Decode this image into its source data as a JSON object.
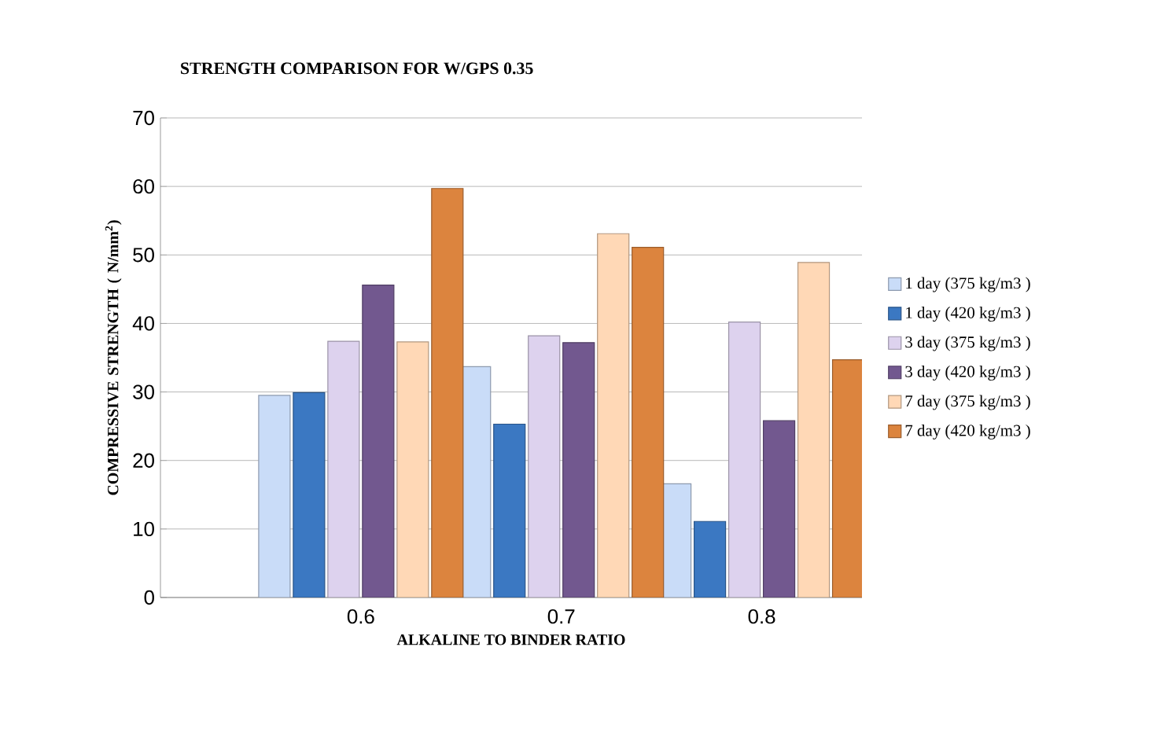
{
  "chart_data": {
    "type": "bar",
    "title": "STRENGTH COMPARISON FOR W/GPS 0.35",
    "xlabel": "ALKALINE  TO BINDER RATIO",
    "ylabel": "COMPRESSIVE STRENGTH ( N/mm$^{2}$)",
    "categories": [
      "0.6",
      "0.7",
      "0.8"
    ],
    "series": [
      {
        "name": "1 day (375 kg/m3 )",
        "color": "#c9dcf8",
        "values": [
          29.5,
          33.7,
          16.6
        ]
      },
      {
        "name": "1 day (420 kg/m3 )",
        "color": "#3b78c2",
        "values": [
          29.9,
          25.3,
          11.1
        ]
      },
      {
        "name": "3 day (375 kg/m3 )",
        "color": "#ddd2ee",
        "values": [
          37.4,
          38.2,
          40.2
        ]
      },
      {
        "name": "3 day (420 kg/m3 )",
        "color": "#72588f",
        "values": [
          45.6,
          37.2,
          25.8
        ]
      },
      {
        "name": "7 day (375 kg/m3 )",
        "color": "#ffd8b6",
        "values": [
          37.3,
          53.1,
          48.9
        ]
      },
      {
        "name": "7 day (420 kg/m3 )",
        "color": "#dc843e",
        "values": [
          59.7,
          51.1,
          34.7
        ]
      }
    ],
    "ylim": [
      0,
      70
    ],
    "yticks": [
      0,
      10,
      20,
      30,
      40,
      50,
      60,
      70
    ],
    "grid": "y",
    "legend": "right"
  }
}
